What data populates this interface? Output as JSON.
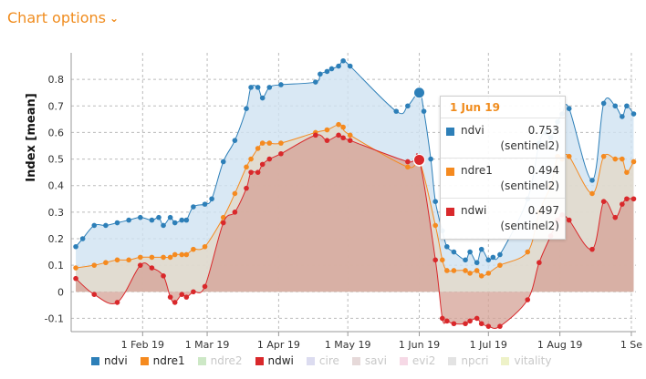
{
  "header": {
    "chart_options_label": "Chart options"
  },
  "tooltip": {
    "date": "1 Jun 19",
    "rows": [
      {
        "name": "ndvi",
        "value": "0.753",
        "source": "(sentinel2)",
        "color": "#2d7fb8"
      },
      {
        "name": "ndre1",
        "value": "0.494",
        "source": "(sentinel2)",
        "color": "#f58a1f"
      },
      {
        "name": "ndwi",
        "value": "0.497",
        "source": "(sentinel2)",
        "color": "#d9282b"
      }
    ]
  },
  "legend": [
    {
      "name": "ndvi",
      "color": "#2d7fb8",
      "active": true
    },
    {
      "name": "ndre1",
      "color": "#f58a1f",
      "active": true
    },
    {
      "name": "ndre2",
      "color": "#cde8c6",
      "active": false
    },
    {
      "name": "ndwi",
      "color": "#d9282b",
      "active": true
    },
    {
      "name": "cire",
      "color": "#dcdcf0",
      "active": false
    },
    {
      "name": "savi",
      "color": "#e6d9d9",
      "active": false
    },
    {
      "name": "evi2",
      "color": "#f6d9e6",
      "active": false
    },
    {
      "name": "npcri",
      "color": "#e3e3e3",
      "active": false
    },
    {
      "name": "vitality",
      "color": "#eef2c8",
      "active": false
    }
  ],
  "chart_data": {
    "type": "area",
    "ylabel": "Index [mean]",
    "xlabel": "",
    "ylim": [
      -0.15,
      0.9
    ],
    "yticks": [
      -0.1,
      0,
      0.1,
      0.2,
      0.3,
      0.4,
      0.5,
      0.6,
      0.7,
      0.8
    ],
    "xlim": [
      "2019-01-01",
      "2019-09-03"
    ],
    "xticks": [
      {
        "date": "2019-02-01",
        "label": "1 Feb 19"
      },
      {
        "date": "2019-03-01",
        "label": "1 Mar 19"
      },
      {
        "date": "2019-04-01",
        "label": "1 Apr 19"
      },
      {
        "date": "2019-05-01",
        "label": "1 May 19"
      },
      {
        "date": "2019-06-01",
        "label": "1 Jun 19"
      },
      {
        "date": "2019-07-01",
        "label": "1 Jul 19"
      },
      {
        "date": "2019-08-01",
        "label": "1 Aug 19"
      },
      {
        "date": "2019-09-01",
        "label": "1 Se"
      }
    ],
    "grid": true,
    "legend_position": "bottom",
    "highlight_date": "2019-06-01",
    "series": [
      {
        "name": "ndvi",
        "color": "#2d7fb8",
        "fill": "#cfe2f1",
        "x": [
          "2019-01-03",
          "2019-01-06",
          "2019-01-11",
          "2019-01-16",
          "2019-01-21",
          "2019-01-26",
          "2019-01-31",
          "2019-02-05",
          "2019-02-08",
          "2019-02-10",
          "2019-02-13",
          "2019-02-15",
          "2019-02-18",
          "2019-02-20",
          "2019-02-23",
          "2019-02-28",
          "2019-03-03",
          "2019-03-08",
          "2019-03-13",
          "2019-03-18",
          "2019-03-20",
          "2019-03-23",
          "2019-03-25",
          "2019-03-28",
          "2019-04-02",
          "2019-04-17",
          "2019-04-19",
          "2019-04-22",
          "2019-04-24",
          "2019-04-27",
          "2019-04-29",
          "2019-05-02",
          "2019-05-22",
          "2019-05-27",
          "2019-06-01",
          "2019-06-03",
          "2019-06-06",
          "2019-06-08",
          "2019-06-11",
          "2019-06-13",
          "2019-06-16",
          "2019-06-21",
          "2019-06-23",
          "2019-06-26",
          "2019-06-28",
          "2019-07-01",
          "2019-07-03",
          "2019-07-06",
          "2019-07-18",
          "2019-07-23",
          "2019-07-26",
          "2019-07-28",
          "2019-07-31",
          "2019-08-02",
          "2019-08-05",
          "2019-08-15",
          "2019-08-20",
          "2019-08-25",
          "2019-08-28",
          "2019-08-30",
          "2019-09-02"
        ],
        "y": [
          0.17,
          0.2,
          0.25,
          0.25,
          0.26,
          0.27,
          0.28,
          0.27,
          0.28,
          0.25,
          0.28,
          0.26,
          0.27,
          0.27,
          0.32,
          0.33,
          0.35,
          0.49,
          0.57,
          0.69,
          0.77,
          0.77,
          0.73,
          0.77,
          0.78,
          0.79,
          0.82,
          0.83,
          0.84,
          0.85,
          0.87,
          0.85,
          0.68,
          0.7,
          0.75,
          0.68,
          0.5,
          0.34,
          0.23,
          0.17,
          0.15,
          0.12,
          0.15,
          0.11,
          0.16,
          0.12,
          0.13,
          0.14,
          0.35,
          0.56,
          0.6,
          0.58,
          0.64,
          0.67,
          0.69,
          0.42,
          0.71,
          0.7,
          0.66,
          0.7,
          0.67
        ]
      },
      {
        "name": "ndre1",
        "color": "#f58a1f",
        "fill": "#e2d8c8",
        "x": [
          "2019-01-03",
          "2019-01-11",
          "2019-01-16",
          "2019-01-21",
          "2019-01-26",
          "2019-01-31",
          "2019-02-05",
          "2019-02-10",
          "2019-02-13",
          "2019-02-15",
          "2019-02-18",
          "2019-02-20",
          "2019-02-23",
          "2019-02-28",
          "2019-03-08",
          "2019-03-13",
          "2019-03-18",
          "2019-03-20",
          "2019-03-23",
          "2019-03-25",
          "2019-03-28",
          "2019-04-02",
          "2019-04-17",
          "2019-04-22",
          "2019-04-27",
          "2019-04-29",
          "2019-05-02",
          "2019-05-27",
          "2019-06-01",
          "2019-06-08",
          "2019-06-11",
          "2019-06-13",
          "2019-06-16",
          "2019-06-21",
          "2019-06-23",
          "2019-06-26",
          "2019-06-28",
          "2019-07-01",
          "2019-07-06",
          "2019-07-18",
          "2019-07-23",
          "2019-07-28",
          "2019-07-31",
          "2019-08-02",
          "2019-08-05",
          "2019-08-15",
          "2019-08-20",
          "2019-08-25",
          "2019-08-28",
          "2019-08-30",
          "2019-09-02"
        ],
        "y": [
          0.09,
          0.1,
          0.11,
          0.12,
          0.12,
          0.13,
          0.13,
          0.13,
          0.13,
          0.14,
          0.14,
          0.14,
          0.16,
          0.17,
          0.28,
          0.37,
          0.47,
          0.5,
          0.54,
          0.56,
          0.56,
          0.56,
          0.6,
          0.61,
          0.63,
          0.62,
          0.59,
          0.47,
          0.494,
          0.25,
          0.12,
          0.08,
          0.08,
          0.08,
          0.07,
          0.08,
          0.06,
          0.07,
          0.1,
          0.15,
          0.3,
          0.4,
          0.51,
          0.5,
          0.51,
          0.37,
          0.51,
          0.5,
          0.5,
          0.45,
          0.49
        ]
      },
      {
        "name": "ndwi",
        "color": "#d9282b",
        "fill": "#d4a196",
        "x": [
          "2019-01-03",
          "2019-01-11",
          "2019-01-21",
          "2019-01-31",
          "2019-02-05",
          "2019-02-10",
          "2019-02-13",
          "2019-02-15",
          "2019-02-18",
          "2019-02-20",
          "2019-02-23",
          "2019-02-28",
          "2019-03-08",
          "2019-03-13",
          "2019-03-18",
          "2019-03-20",
          "2019-03-23",
          "2019-03-25",
          "2019-03-28",
          "2019-04-02",
          "2019-04-17",
          "2019-04-22",
          "2019-04-27",
          "2019-04-29",
          "2019-05-02",
          "2019-05-27",
          "2019-06-01",
          "2019-06-08",
          "2019-06-11",
          "2019-06-13",
          "2019-06-16",
          "2019-06-21",
          "2019-06-23",
          "2019-06-26",
          "2019-06-28",
          "2019-07-01",
          "2019-07-06",
          "2019-07-18",
          "2019-07-23",
          "2019-07-28",
          "2019-07-31",
          "2019-08-02",
          "2019-08-05",
          "2019-08-15",
          "2019-08-20",
          "2019-08-25",
          "2019-08-28",
          "2019-08-30",
          "2019-09-02"
        ],
        "y": [
          0.05,
          -0.01,
          -0.04,
          0.1,
          0.09,
          0.06,
          -0.02,
          -0.04,
          -0.01,
          -0.02,
          0.0,
          0.02,
          0.26,
          0.3,
          0.39,
          0.45,
          0.45,
          0.48,
          0.5,
          0.52,
          0.59,
          0.57,
          0.59,
          0.58,
          0.57,
          0.49,
          0.497,
          0.12,
          -0.1,
          -0.11,
          -0.12,
          -0.12,
          -0.11,
          -0.1,
          -0.12,
          -0.13,
          -0.13,
          -0.03,
          0.11,
          0.21,
          0.27,
          0.29,
          0.27,
          0.16,
          0.34,
          0.28,
          0.33,
          0.35,
          0.35
        ]
      }
    ]
  }
}
